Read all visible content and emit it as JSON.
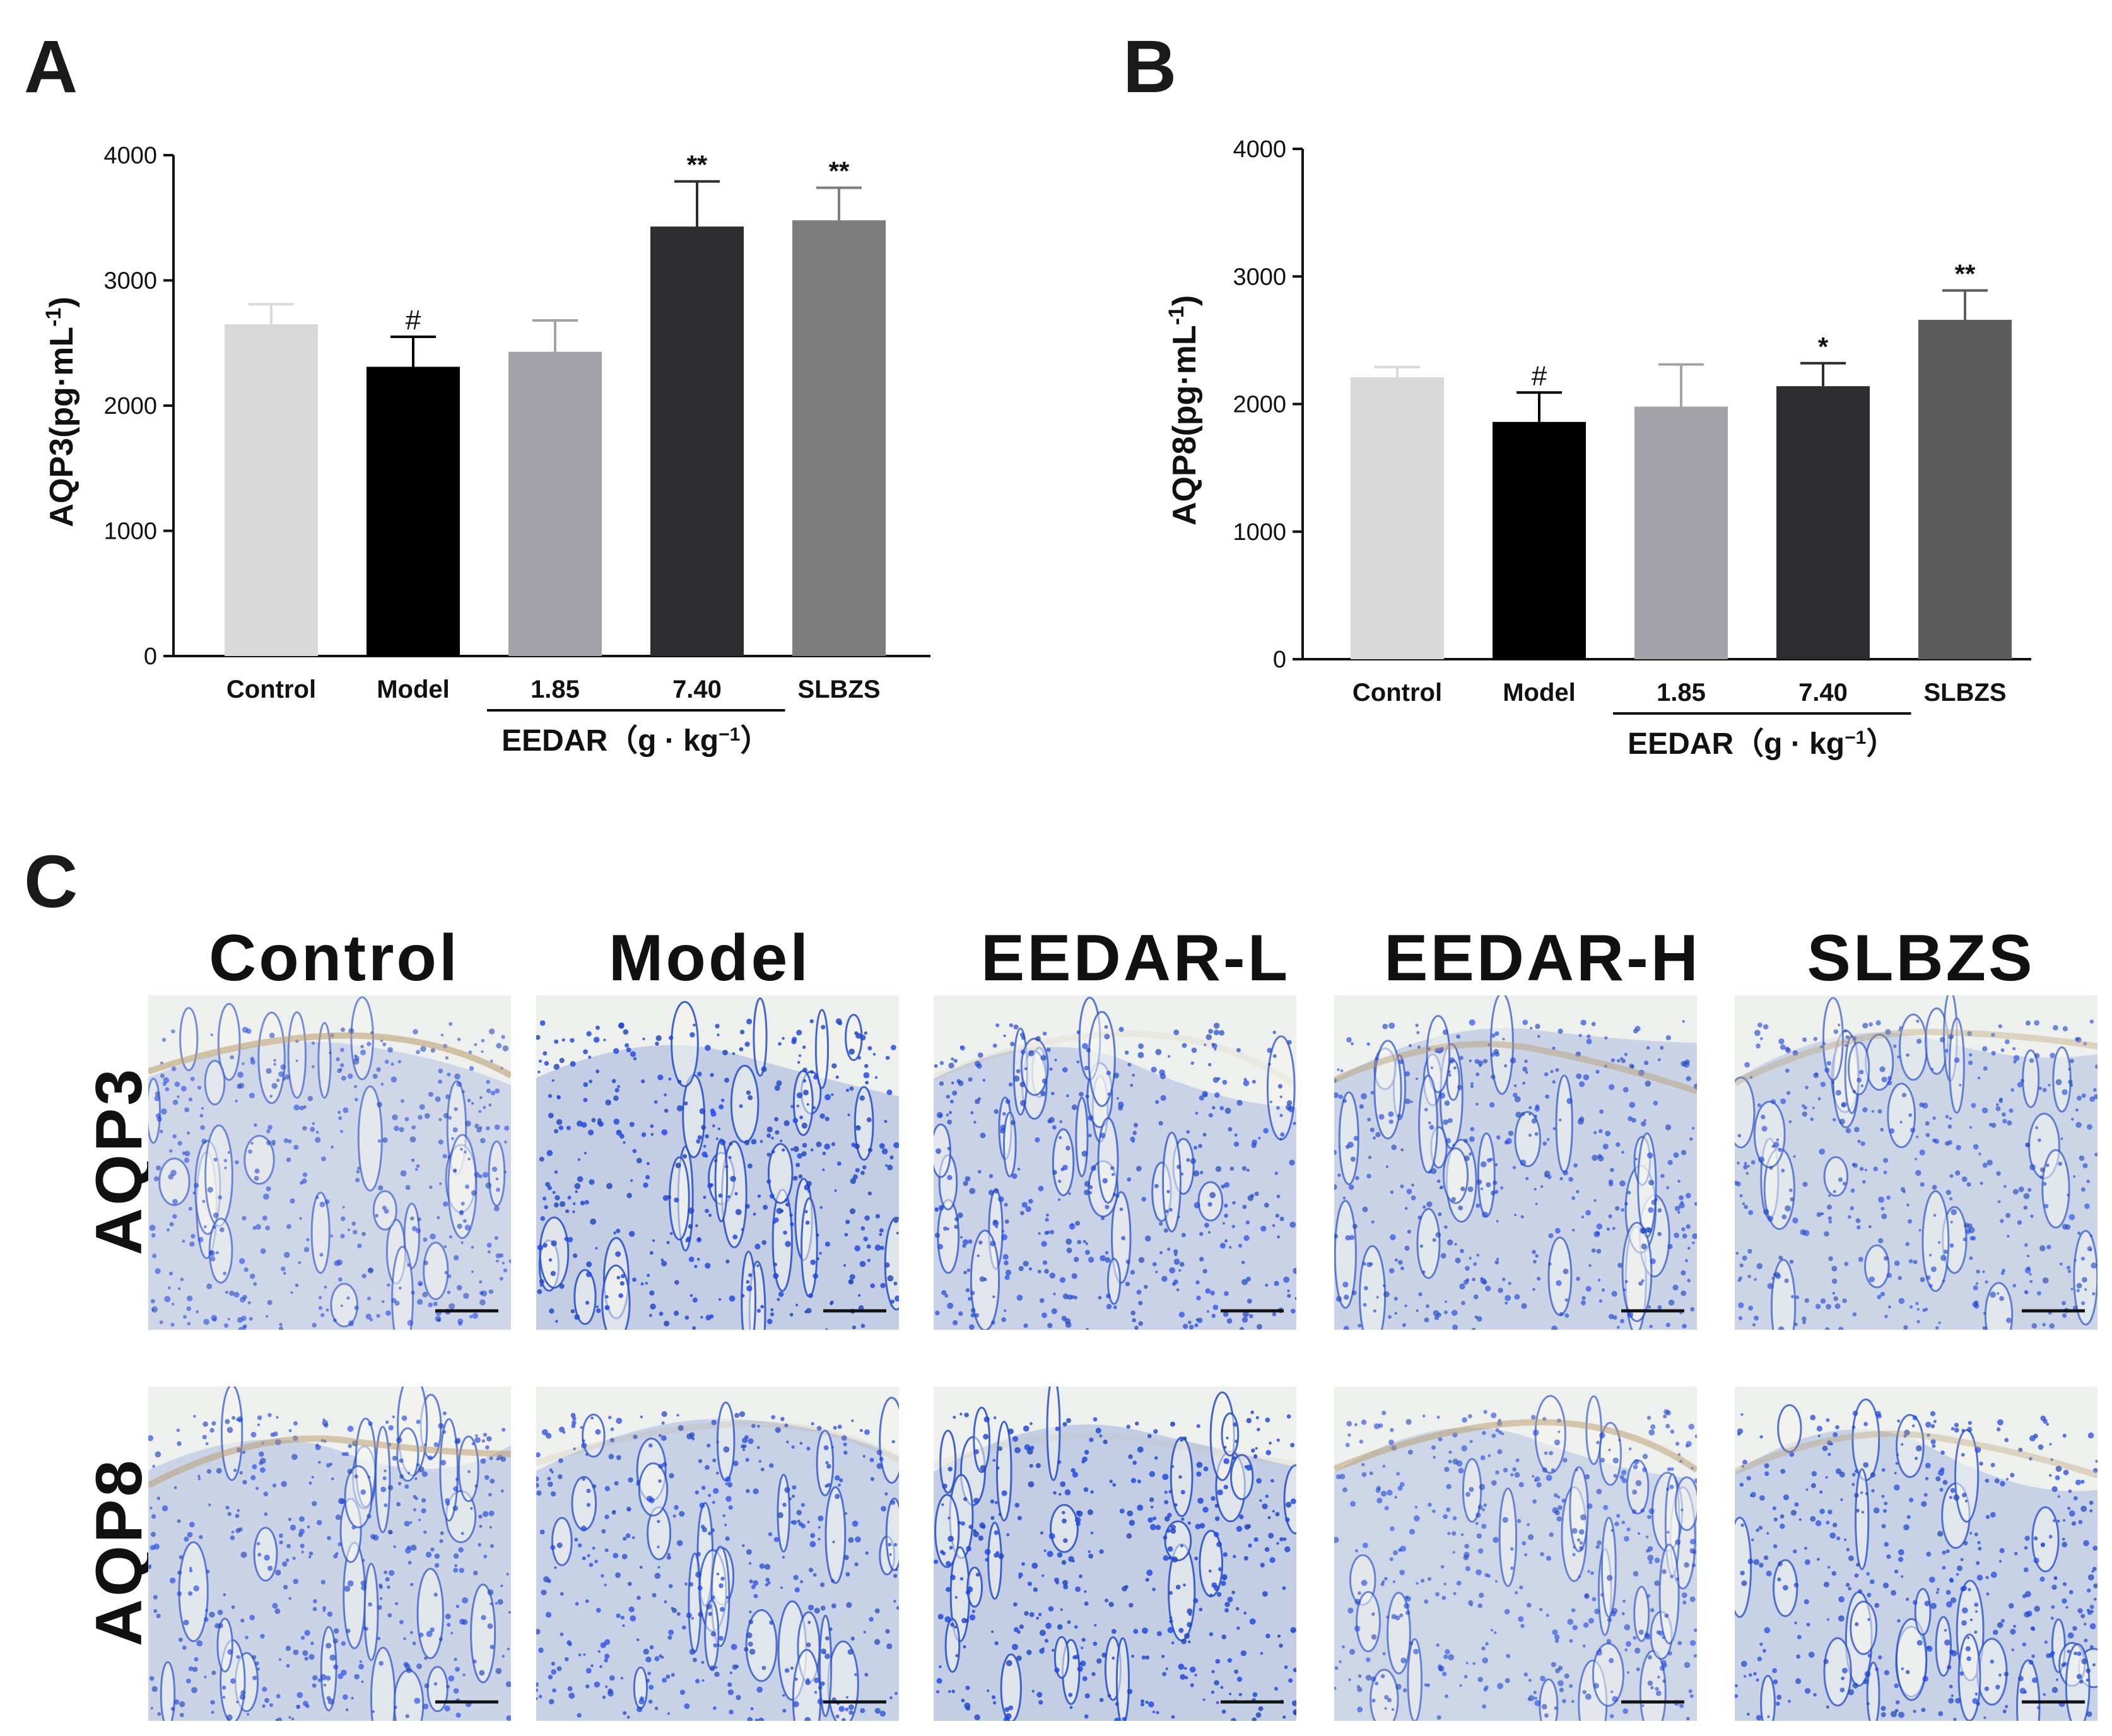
{
  "panels": {
    "a": {
      "letter": "A"
    },
    "b": {
      "letter": "B"
    },
    "c": {
      "letter": "C"
    }
  },
  "chart_data": [
    {
      "type": "bar",
      "panel": "A",
      "ylabel": "AQP3(pg·mL",
      "ylabel_sup": "-1",
      "ylabel_close": ")",
      "ylim": [
        0,
        4000
      ],
      "yticks": [
        "0",
        "1000",
        "2000",
        "3000",
        "4000"
      ],
      "categories": [
        "Control",
        "Model",
        "1.85",
        "7.40",
        "SLBZS"
      ],
      "group_label": "EEDAR（g · kg",
      "group_label_sup": "−1",
      "group_label_close": "）",
      "values": [
        2650,
        2310,
        2430,
        3430,
        3480
      ],
      "errors": [
        160,
        240,
        250,
        360,
        260
      ],
      "annotations": [
        "",
        "#",
        "",
        "**",
        "**"
      ],
      "colors": [
        "#d9d9d9",
        "#000000",
        "#a3a2a8",
        "#2d2d2f",
        "#7d7d7d"
      ]
    },
    {
      "type": "bar",
      "panel": "B",
      "ylabel": "AQP8(pg·mL",
      "ylabel_sup": "-1",
      "ylabel_close": ")",
      "ylim": [
        0,
        4000
      ],
      "yticks": [
        "0",
        "1000",
        "2000",
        "3000",
        "4000"
      ],
      "categories": [
        "Control",
        "Model",
        "1.85",
        "7.40",
        "SLBZS"
      ],
      "group_label": "EEDAR（g · kg",
      "group_label_sup": "−1",
      "group_label_close": "）",
      "values": [
        2210,
        1860,
        1980,
        2140,
        2660
      ],
      "errors": [
        80,
        230,
        330,
        180,
        230
      ],
      "annotations": [
        "",
        "#",
        "",
        "*",
        "**"
      ],
      "colors": [
        "#d9d9d9",
        "#000000",
        "#a3a2a8",
        "#2d2d2f",
        "#5c5c5c"
      ]
    }
  ],
  "micrographs": {
    "columns": [
      "Control",
      "Model",
      "EEDAR-L",
      "EEDAR-H",
      "SLBZS"
    ],
    "rows": [
      "AQP3",
      "AQP8"
    ],
    "stain_colors": {
      "hematoxylin": "#3a5fcf",
      "dab": "#b89a6a",
      "background": "#eef0ee"
    }
  }
}
